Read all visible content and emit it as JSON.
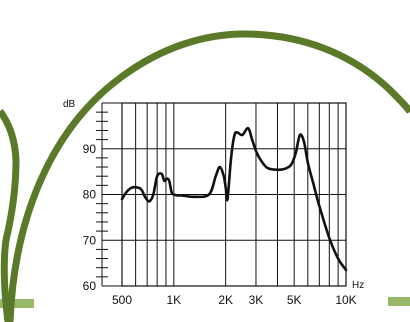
{
  "colors": {
    "ring": "#5a7a2a",
    "band": "#9ab86a",
    "grid": "#111111",
    "curve": "#111111",
    "background": "#ffffff"
  },
  "chart_data": {
    "type": "line",
    "x_scale": "log",
    "xlim": [
      500,
      10000
    ],
    "ylim": [
      60,
      100
    ],
    "grid": true,
    "y_unit": "dB",
    "x_unit": "Hz",
    "x_ticks": [
      {
        "value": 500,
        "label": "500"
      },
      {
        "value": 1000,
        "label": "1K"
      },
      {
        "value": 2000,
        "label": "2K"
      },
      {
        "value": 3000,
        "label": "3K"
      },
      {
        "value": 5000,
        "label": "5K"
      },
      {
        "value": 10000,
        "label": "10K"
      }
    ],
    "y_ticks": [
      {
        "value": 60,
        "label": "60"
      },
      {
        "value": 70,
        "label": "70"
      },
      {
        "value": 80,
        "label": "80"
      },
      {
        "value": 90,
        "label": "90"
      }
    ],
    "x_minor_grid": [
      600,
      700,
      800,
      900,
      4000,
      6000,
      7000,
      8000,
      9000
    ],
    "series": [
      {
        "x": [
          500,
          530,
          570,
          620,
          650,
          680,
          720,
          760,
          800,
          850,
          880,
          910,
          940,
          970,
          1000,
          1050,
          1100,
          1300,
          1600,
          1750,
          1850,
          1950,
          2000,
          2050,
          2150,
          2250,
          2350,
          2500,
          2700,
          2850,
          3000,
          3200,
          3500,
          4000,
          4400,
          4800,
          5100,
          5400,
          5700,
          6000,
          6500,
          7000,
          8000,
          9000,
          10000
        ],
        "y": [
          79,
          80.5,
          81.5,
          81.5,
          81,
          79.5,
          78.5,
          80,
          84,
          84.5,
          83,
          83.5,
          83,
          80.5,
          80,
          79.8,
          79.8,
          79.5,
          80,
          84,
          86,
          84,
          81.5,
          79,
          88,
          93,
          93.5,
          93,
          94.5,
          92,
          89.5,
          87.5,
          85.8,
          85.4,
          85.6,
          86.5,
          89,
          93,
          91.5,
          87,
          82,
          77.5,
          70.5,
          66,
          63.5
        ]
      }
    ]
  }
}
